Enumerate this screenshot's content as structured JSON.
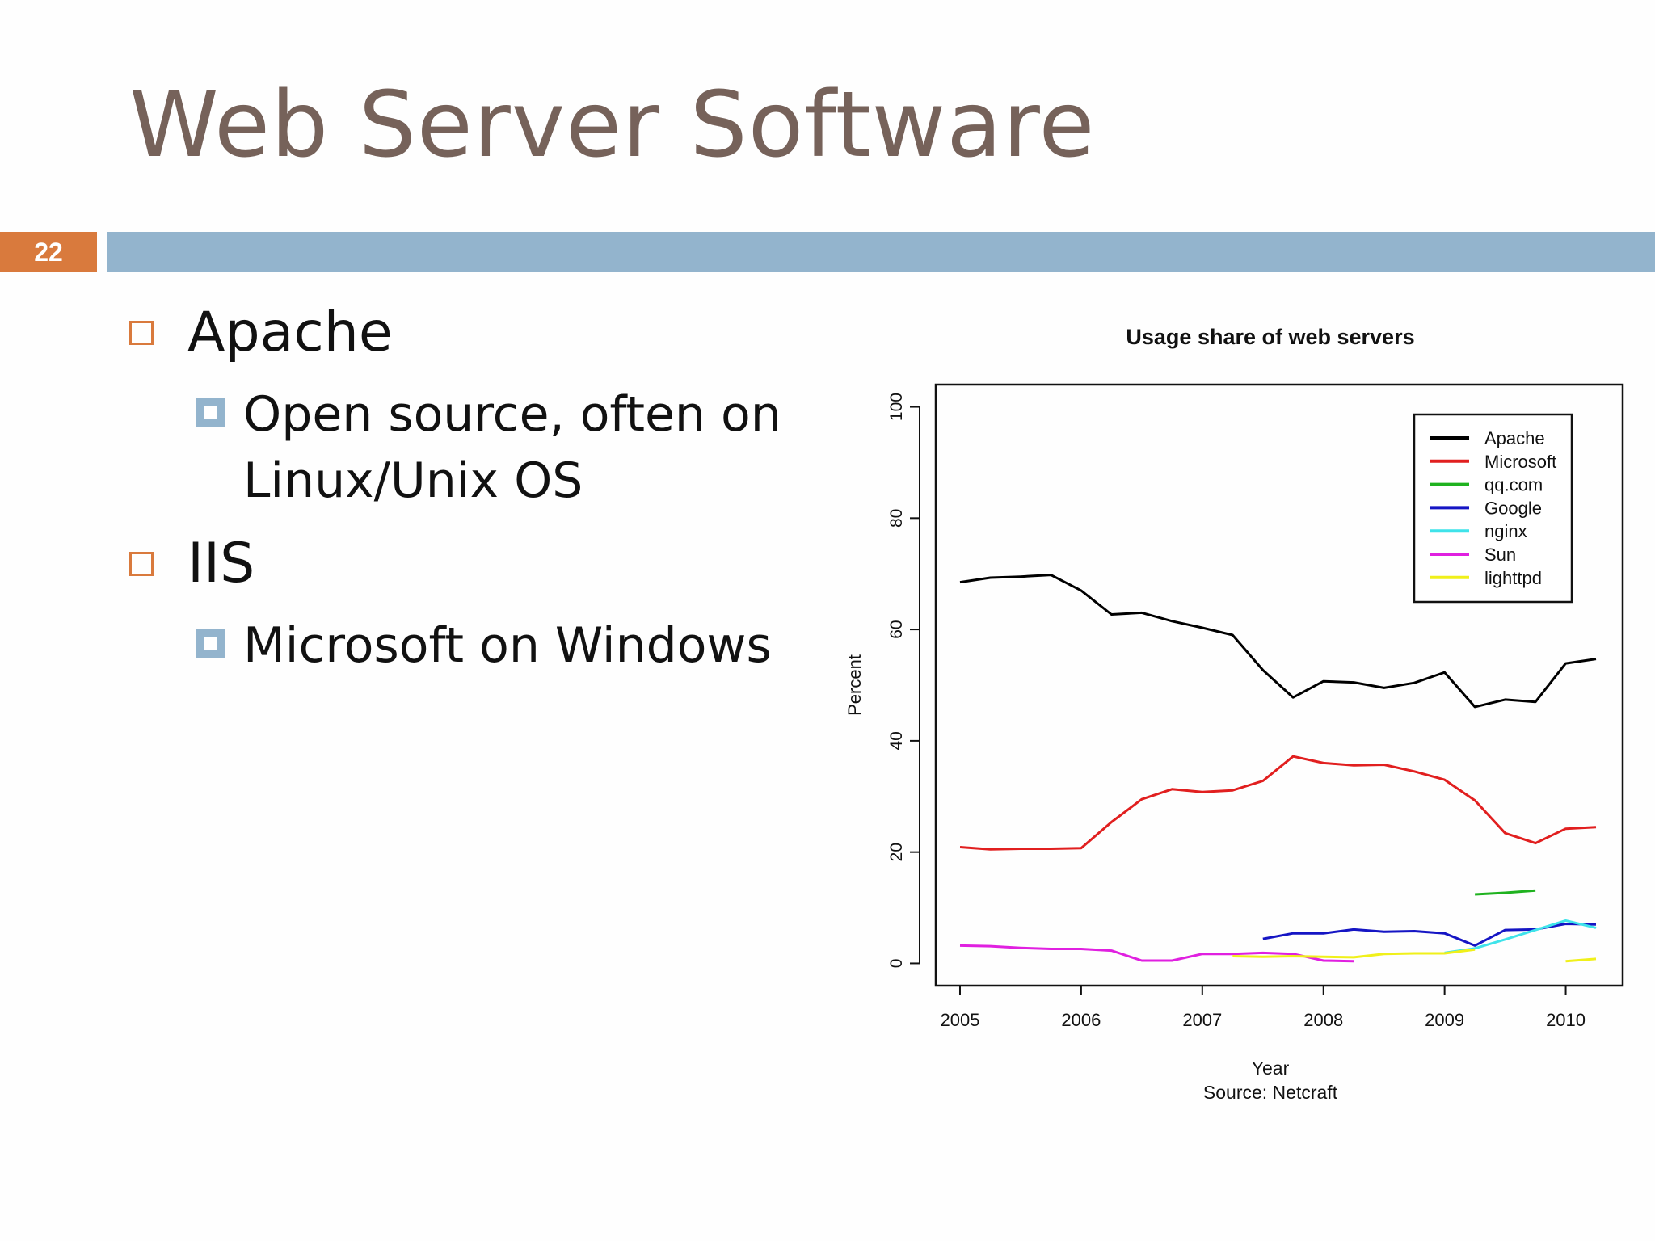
{
  "slide": {
    "title": "Web Server Software",
    "page_number": "22"
  },
  "bullets": [
    {
      "label": "Apache",
      "sub": [
        "Open source, often on",
        "Linux/Unix OS"
      ]
    },
    {
      "label": "IIS",
      "sub": [
        "Microsoft on Windows"
      ]
    }
  ],
  "colors": {
    "title": "#76625a",
    "accent": "#d97a3d",
    "bar": "#93b4cd"
  },
  "chart_data": {
    "type": "line",
    "title": "Usage share of web servers",
    "xlabel": "Year",
    "caption": "Source:  Netcraft",
    "ylabel": "Percent",
    "xlim": [
      2004.8,
      2010.47
    ],
    "ylim": [
      -4,
      104
    ],
    "x_ticks": [
      2005,
      2006,
      2007,
      2008,
      2009,
      2010
    ],
    "y_ticks": [
      0,
      20,
      40,
      60,
      80,
      100
    ],
    "grid": false,
    "legend_position": "top-right",
    "series": [
      {
        "name": "Apache",
        "color": "#000000",
        "x": [
          2005.0,
          2005.25,
          2005.5,
          2005.75,
          2006.0,
          2006.25,
          2006.5,
          2006.75,
          2007.0,
          2007.25,
          2007.5,
          2007.75,
          2008.0,
          2008.25,
          2008.5,
          2008.75,
          2009.0,
          2009.25,
          2009.5,
          2009.75,
          2010.0,
          2010.25
        ],
        "y": [
          68.5,
          69.3,
          69.5,
          69.8,
          67.0,
          62.7,
          63.0,
          61.5,
          60.3,
          59.0,
          52.7,
          47.8,
          50.7,
          50.5,
          49.5,
          50.4,
          52.3,
          46.1,
          47.4,
          47.0,
          53.9,
          54.7
        ]
      },
      {
        "name": "Microsoft",
        "color": "#e11f1f",
        "x": [
          2005.0,
          2005.25,
          2005.5,
          2005.75,
          2006.0,
          2006.25,
          2006.5,
          2006.75,
          2007.0,
          2007.25,
          2007.5,
          2007.75,
          2008.0,
          2008.25,
          2008.5,
          2008.75,
          2009.0,
          2009.25,
          2009.5,
          2009.75,
          2010.0,
          2010.25
        ],
        "y": [
          20.9,
          20.5,
          20.6,
          20.6,
          20.7,
          25.4,
          29.5,
          31.3,
          30.8,
          31.1,
          32.8,
          37.2,
          36.0,
          35.6,
          35.7,
          34.5,
          33.0,
          29.3,
          23.4,
          21.6,
          24.2,
          24.5
        ]
      },
      {
        "name": "qq.com",
        "color": "#1fb21f",
        "x": [
          2009.25,
          2009.5,
          2009.75
        ],
        "y": [
          12.4,
          12.7,
          13.1
        ]
      },
      {
        "name": "Google",
        "color": "#1515c4",
        "x": [
          2007.5,
          2007.75,
          2008.0,
          2008.25,
          2008.5,
          2008.75,
          2009.0,
          2009.25,
          2009.5,
          2009.75,
          2010.0,
          2010.25
        ],
        "y": [
          4.4,
          5.4,
          5.4,
          6.1,
          5.7,
          5.8,
          5.4,
          3.2,
          6.0,
          6.1,
          7.1,
          7.0
        ]
      },
      {
        "name": "nginx",
        "color": "#3fe3ea",
        "x": [
          2009.0,
          2009.25,
          2009.5,
          2009.75,
          2010.0,
          2010.25
        ],
        "y": [
          1.9,
          2.7,
          4.3,
          6.0,
          7.7,
          6.4
        ]
      },
      {
        "name": "Sun",
        "color": "#e020e0",
        "x": [
          2005.0,
          2005.25,
          2005.5,
          2005.75,
          2006.0,
          2006.25,
          2006.5,
          2006.75,
          2007.0,
          2007.25,
          2007.5,
          2007.75,
          2008.0,
          2008.25
        ],
        "y": [
          3.2,
          3.1,
          2.8,
          2.6,
          2.6,
          2.3,
          0.5,
          0.5,
          1.7,
          1.7,
          1.9,
          1.7,
          0.5,
          0.4
        ]
      },
      {
        "name": "lighttpd",
        "color": "#f0f01a",
        "x": [
          2007.25,
          2007.5,
          2007.75,
          2008.0,
          2008.25,
          2008.5,
          2008.75,
          2009.0,
          2009.25,
          2010.0,
          2010.25
        ],
        "y": [
          1.3,
          1.2,
          1.3,
          1.2,
          1.1,
          1.7,
          1.8,
          1.8,
          2.5,
          0.4,
          0.8
        ]
      }
    ]
  }
}
